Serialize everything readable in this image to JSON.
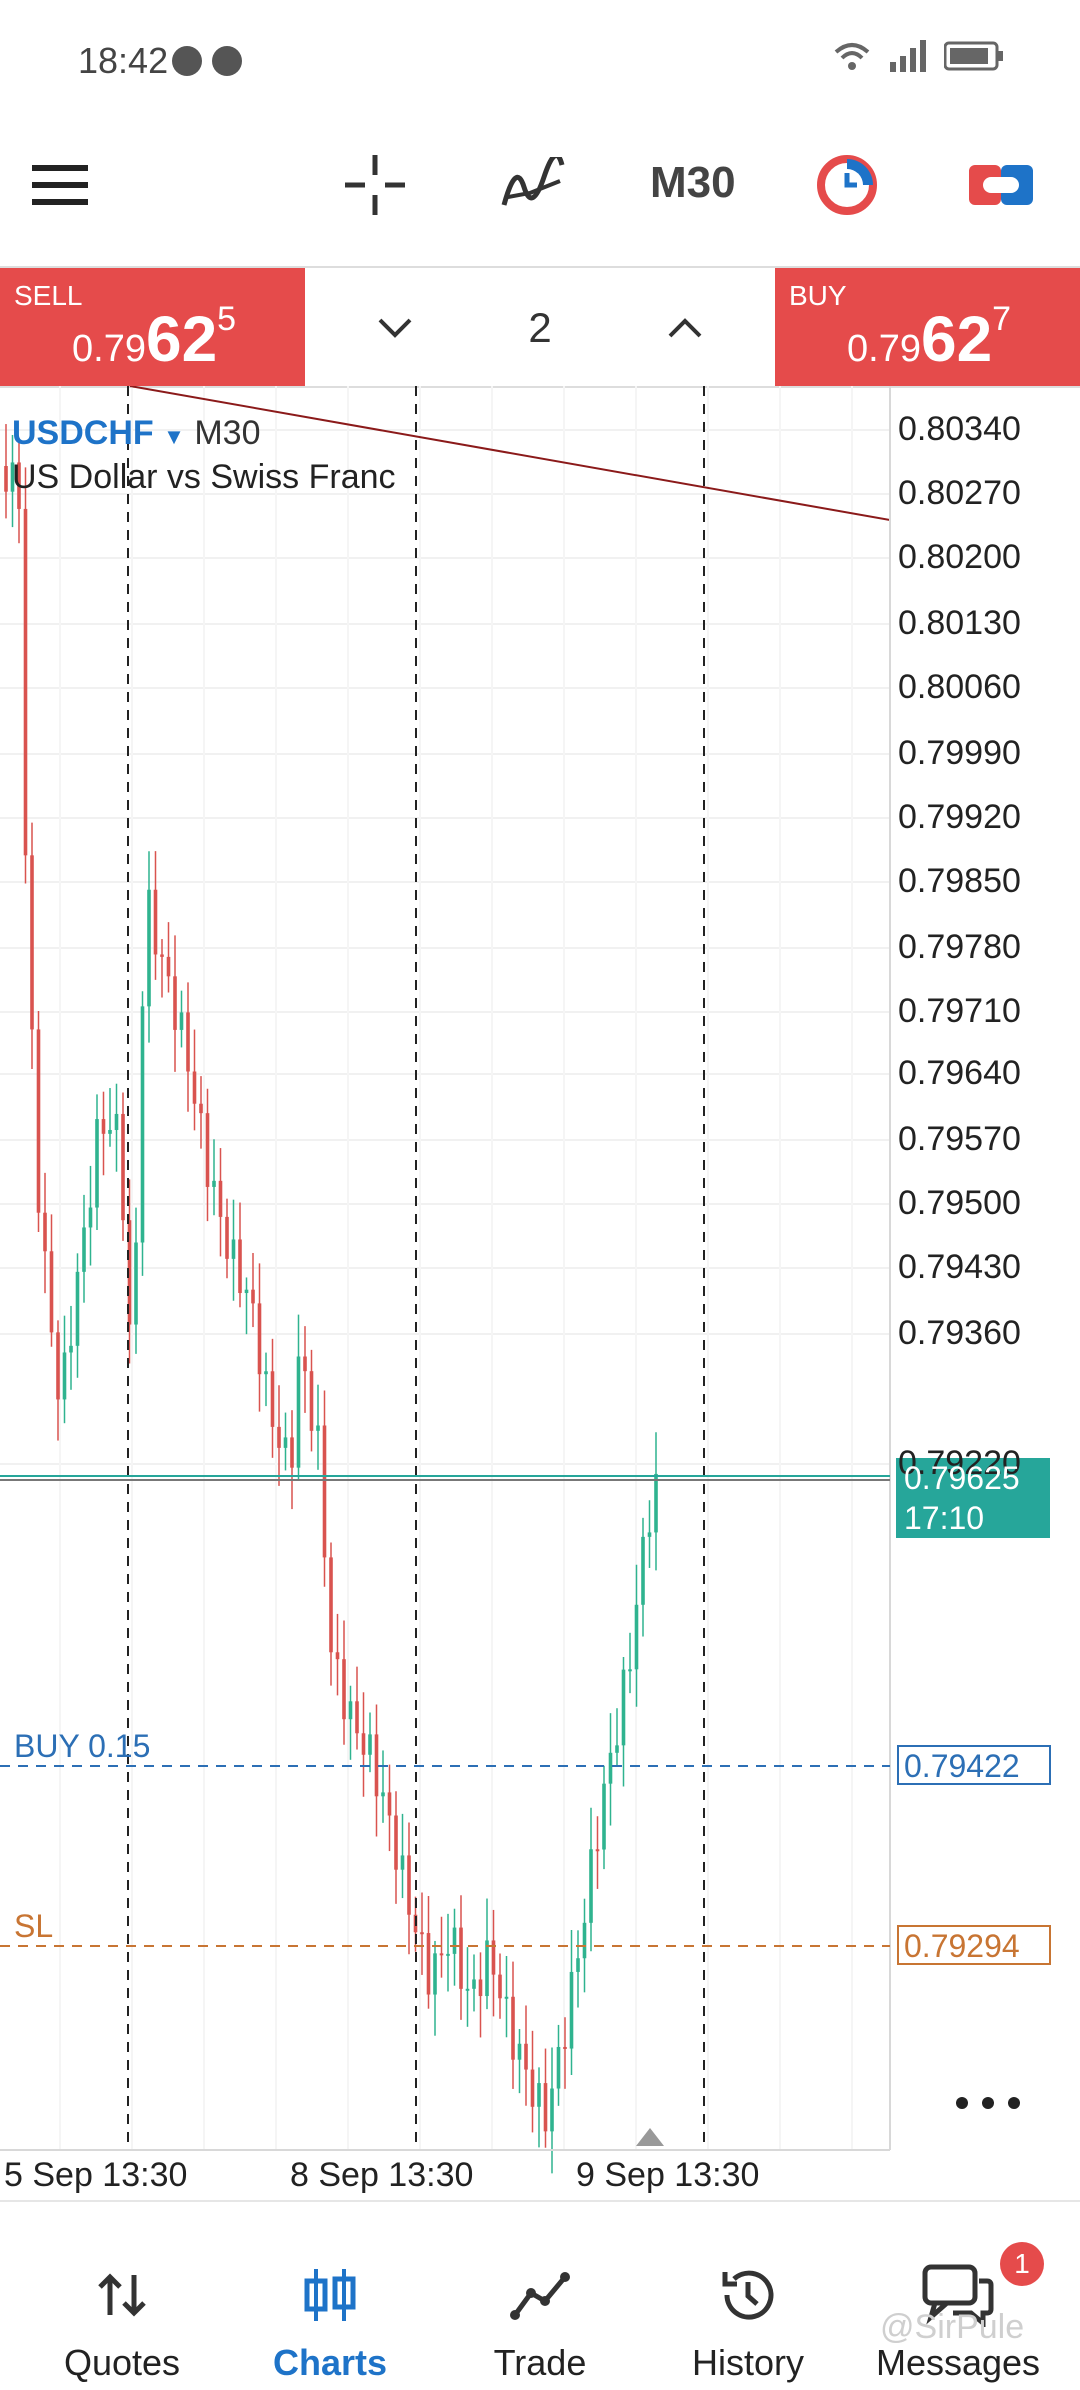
{
  "status_bar": {
    "time": "18:42"
  },
  "toolbar": {
    "timeframe": "M30"
  },
  "trade_panel": {
    "sell": {
      "label": "SELL",
      "price_small": "0.79",
      "price_big": "62",
      "price_sup": "5"
    },
    "buy": {
      "label": "BUY",
      "price_small": "0.79",
      "price_big": "62",
      "price_sup": "7"
    },
    "volume": "2"
  },
  "chart": {
    "symbol": "USDCHF",
    "timeframe": "M30",
    "description": "US Dollar vs Swiss Franc",
    "y_labels": [
      "0.80340",
      "0.80270",
      "0.80200",
      "0.80130",
      "0.80060",
      "0.79990",
      "0.79920",
      "0.79850",
      "0.79780",
      "0.79710",
      "0.79640",
      "0.79570",
      "0.79500",
      "0.79430",
      "0.79360",
      "0.79220"
    ],
    "x_labels": [
      "5 Sep 13:30",
      "8 Sep 13:30",
      "9 Sep 13:30"
    ],
    "current_price": "0.79625",
    "countdown": "17:10",
    "buy_line": {
      "label": "BUY 0.15",
      "price": "0.79422"
    },
    "sl_line": {
      "label": "SL",
      "price": "0.79294"
    },
    "more_icon": "more-dots-icon"
  },
  "bottom_nav": {
    "items": [
      {
        "label": "Quotes",
        "icon": "quotes-icon"
      },
      {
        "label": "Charts",
        "icon": "charts-icon"
      },
      {
        "label": "Trade",
        "icon": "trade-icon"
      },
      {
        "label": "History",
        "icon": "history-icon"
      },
      {
        "label": "Messages",
        "icon": "messages-icon"
      }
    ],
    "messages_badge": "1"
  },
  "watermark": "@SirPule",
  "colors": {
    "sell_buy_bg": "#e54b4b",
    "accent_blue": "#1e73c8",
    "bull": "#2fb38f",
    "bear": "#d9534f",
    "sl": "#c87533",
    "price_tag": "#26a69a"
  }
}
